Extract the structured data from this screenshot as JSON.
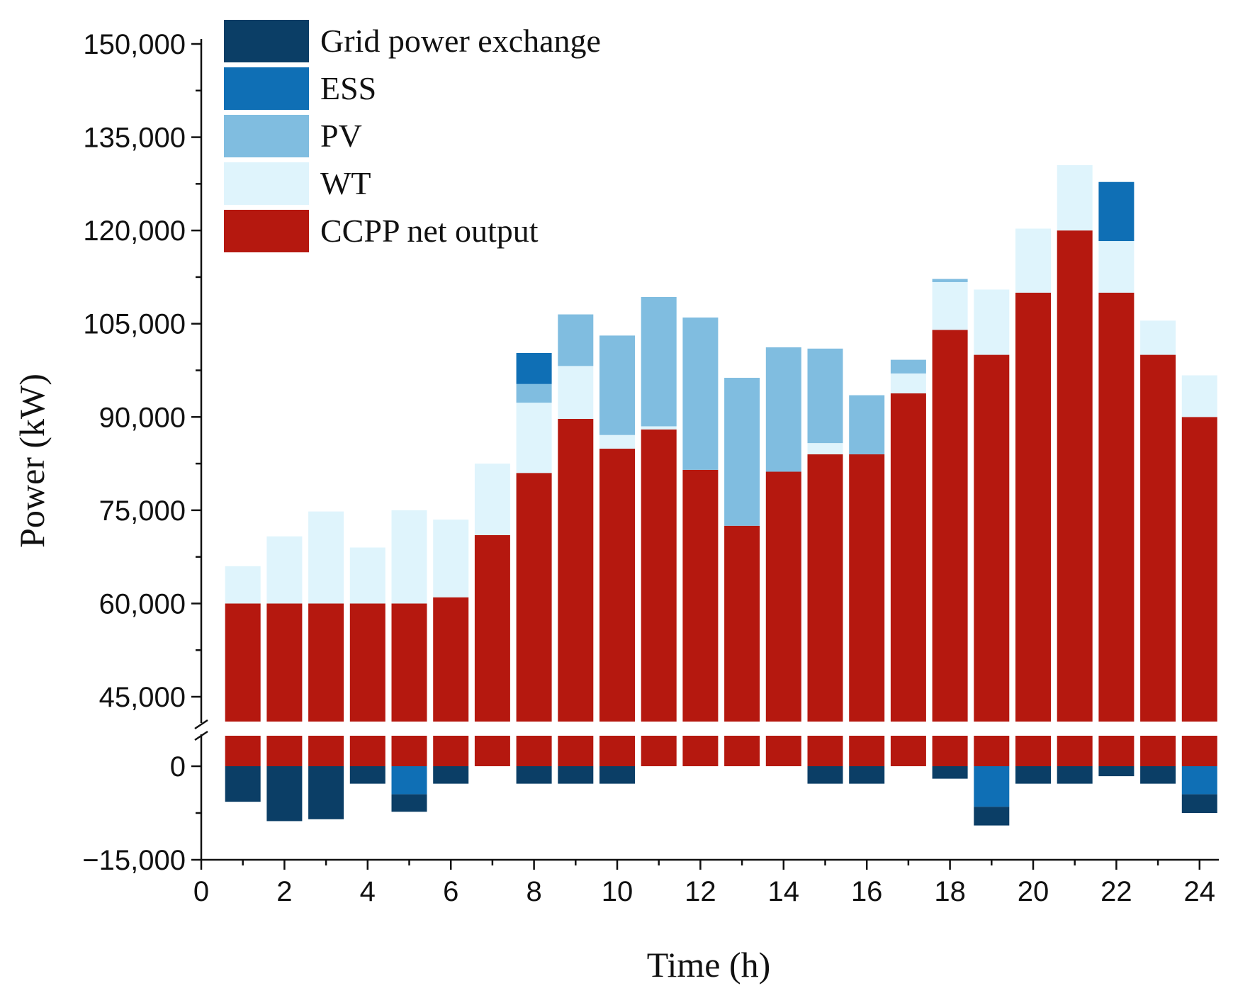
{
  "chart_data": {
    "type": "bar",
    "stacked": true,
    "broken_y_axis": true,
    "x": [
      1,
      2,
      3,
      4,
      5,
      6,
      7,
      8,
      9,
      10,
      11,
      12,
      13,
      14,
      15,
      16,
      17,
      18,
      19,
      20,
      21,
      22,
      23,
      24
    ],
    "xlabel": "Time (h)",
    "ylabel": "Power (kW)",
    "xlim": [
      0,
      24.5
    ],
    "x_ticks": [
      0,
      2,
      4,
      6,
      8,
      10,
      12,
      14,
      16,
      18,
      20,
      22,
      24
    ],
    "x_tick_labels": [
      "0",
      "2",
      "4",
      "6",
      "8",
      "10",
      "12",
      "14",
      "16",
      "18",
      "20",
      "22",
      "24"
    ],
    "upper_y_ticks": [
      45000,
      60000,
      75000,
      90000,
      105000,
      120000,
      135000,
      150000
    ],
    "upper_y_tick_labels": [
      "45,000",
      "60,000",
      "75,000",
      "90,000",
      "105,000",
      "120,000",
      "135,000",
      "150,000"
    ],
    "lower_y_ticks": [
      -15000,
      0
    ],
    "lower_y_tick_labels": [
      "−15,000",
      "0"
    ],
    "upper_ylim": [
      40000,
      152000
    ],
    "lower_ylim": [
      -15000,
      5000
    ],
    "series": [
      {
        "name": "CCPP net output",
        "color": "#b5180f",
        "values": [
          60000,
          60000,
          60000,
          60000,
          60000,
          61000,
          71000,
          81000,
          89700,
          84900,
          88000,
          81500,
          72500,
          81200,
          84000,
          84000,
          93800,
          104000,
          100000,
          110000,
          120000,
          110000,
          100000,
          90000
        ]
      },
      {
        "name": "WT",
        "color": "#dff4fc",
        "values": [
          6000,
          10800,
          14800,
          9000,
          15000,
          12500,
          11500,
          11300,
          8500,
          2200,
          500,
          0,
          0,
          0,
          1800,
          0,
          3200,
          7700,
          10500,
          10300,
          10500,
          8300,
          5500,
          6700
        ]
      },
      {
        "name": "PV",
        "color": "#80bde0",
        "values": [
          0,
          0,
          0,
          0,
          0,
          0,
          0,
          3000,
          8300,
          16000,
          20800,
          24500,
          23800,
          20000,
          15200,
          9500,
          2200,
          500,
          0,
          0,
          0,
          0,
          0,
          0
        ]
      },
      {
        "name": "ESS",
        "color": "#0f6fb5",
        "values": [
          0,
          0,
          0,
          0,
          -4500,
          0,
          0,
          5000,
          0,
          0,
          0,
          0,
          0,
          0,
          0,
          0,
          0,
          0,
          -6500,
          0,
          0,
          9500,
          0,
          -4500
        ]
      },
      {
        "name": "Grid power exchange",
        "color": "#0b3e66",
        "values": [
          -5700,
          -8800,
          -8500,
          -2800,
          -2800,
          -2800,
          0,
          -2800,
          -2800,
          -2800,
          0,
          0,
          0,
          0,
          -2800,
          -2800,
          0,
          -2000,
          -3000,
          -2800,
          -2800,
          -1600,
          -2800,
          -3000
        ]
      }
    ],
    "legend_order": [
      "Grid power exchange",
      "ESS",
      "PV",
      "WT",
      "CCPP net output"
    ],
    "legend_position": "top-left",
    "grid": false
  }
}
